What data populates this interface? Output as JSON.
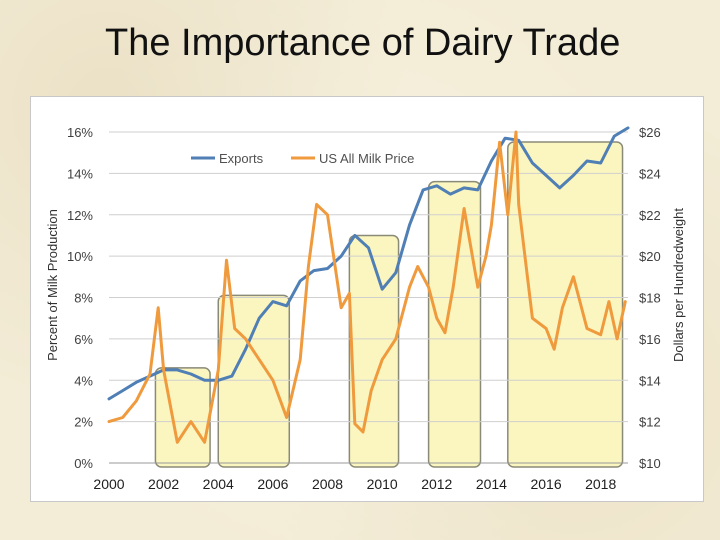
{
  "slide": {
    "title": "The Importance of Dairy Trade"
  },
  "chart_data": {
    "type": "line",
    "title": "The Importance of Dairy Trade",
    "xlabel": "",
    "ylabel_left": "Percent of Milk Production",
    "ylabel_right": "Dollars per Hundredweight",
    "xlim": [
      2000,
      2019
    ],
    "x_ticks": [
      2000,
      2002,
      2004,
      2006,
      2008,
      2010,
      2012,
      2014,
      2016,
      2018
    ],
    "x_tick_labels": [
      "2000",
      "2002",
      "2004",
      "2006",
      "2008",
      "2010",
      "2012",
      "2014",
      "2016",
      "2018"
    ],
    "ylim_left": [
      0,
      16
    ],
    "y_left_ticks": [
      0,
      2,
      4,
      6,
      8,
      10,
      12,
      14,
      16
    ],
    "y_left_tick_labels": [
      "0%",
      "2%",
      "4%",
      "6%",
      "8%",
      "10%",
      "12%",
      "14%",
      "16%"
    ],
    "ylim_right": [
      10,
      26
    ],
    "y_right_ticks": [
      10,
      12,
      14,
      16,
      18,
      20,
      22,
      24,
      26
    ],
    "y_right_tick_labels": [
      "$10",
      "$12",
      "$14",
      "$16",
      "$18",
      "$20",
      "$22",
      "$24",
      "$26"
    ],
    "legend": {
      "position": "top-center",
      "entries": [
        "Exports",
        "US All Milk Price"
      ]
    },
    "grid": true,
    "highlight_periods": [
      {
        "start": 2001.7,
        "end": 2003.7
      },
      {
        "start": 2004.0,
        "end": 2006.6
      },
      {
        "start": 2008.8,
        "end": 2010.6
      },
      {
        "start": 2011.7,
        "end": 2013.6
      },
      {
        "start": 2014.6,
        "end": 2018.8
      }
    ],
    "series": [
      {
        "name": "Exports",
        "axis": "left",
        "color": "#4f7fb5",
        "x": [
          2000.0,
          2000.5,
          2001.0,
          2001.5,
          2002.0,
          2002.5,
          2003.0,
          2003.5,
          2004.0,
          2004.5,
          2005.0,
          2005.5,
          2006.0,
          2006.5,
          2007.0,
          2007.5,
          2008.0,
          2008.5,
          2009.0,
          2009.5,
          2010.0,
          2010.5,
          2011.0,
          2011.5,
          2012.0,
          2012.5,
          2013.0,
          2013.5,
          2014.0,
          2014.5,
          2015.0,
          2015.5,
          2016.0,
          2016.5,
          2017.0,
          2017.5,
          2018.0,
          2018.5,
          2019.0
        ],
        "values": [
          3.1,
          3.5,
          3.9,
          4.2,
          4.5,
          4.5,
          4.3,
          4.0,
          4.0,
          4.2,
          5.5,
          7.0,
          7.8,
          7.6,
          8.8,
          9.3,
          9.4,
          10.0,
          11.0,
          10.4,
          8.4,
          9.2,
          11.5,
          13.2,
          13.4,
          13.0,
          13.3,
          13.2,
          14.6,
          15.7,
          15.6,
          14.5,
          13.9,
          13.3,
          13.9,
          14.6,
          14.5,
          15.8,
          16.2
        ]
      },
      {
        "name": "US All Milk Price",
        "axis": "right",
        "color": "#f09a3e",
        "x": [
          2000.0,
          2000.5,
          2001.0,
          2001.5,
          2001.8,
          2002.0,
          2002.5,
          2003.0,
          2003.5,
          2004.0,
          2004.3,
          2004.6,
          2005.0,
          2005.5,
          2006.0,
          2006.5,
          2007.0,
          2007.3,
          2007.6,
          2008.0,
          2008.5,
          2008.8,
          2009.0,
          2009.3,
          2009.6,
          2010.0,
          2010.5,
          2011.0,
          2011.3,
          2011.7,
          2012.0,
          2012.3,
          2012.6,
          2013.0,
          2013.5,
          2013.8,
          2014.0,
          2014.3,
          2014.6,
          2014.9,
          2015.0,
          2015.5,
          2016.0,
          2016.3,
          2016.6,
          2017.0,
          2017.5,
          2018.0,
          2018.3,
          2018.6,
          2018.9
        ],
        "values": [
          12.0,
          12.2,
          13.0,
          14.3,
          17.5,
          14.5,
          11.0,
          12.0,
          11.0,
          14.5,
          19.8,
          16.5,
          16.0,
          15.0,
          14.0,
          12.2,
          15.0,
          19.5,
          22.5,
          22.0,
          17.5,
          18.2,
          11.9,
          11.5,
          13.5,
          15.0,
          16.0,
          18.5,
          19.5,
          18.5,
          17.0,
          16.3,
          18.5,
          22.3,
          18.5,
          20.0,
          21.5,
          25.5,
          22.0,
          26.0,
          22.5,
          17.0,
          16.5,
          15.5,
          17.5,
          19.0,
          16.5,
          16.2,
          17.8,
          16.0,
          17.8
        ]
      }
    ]
  }
}
